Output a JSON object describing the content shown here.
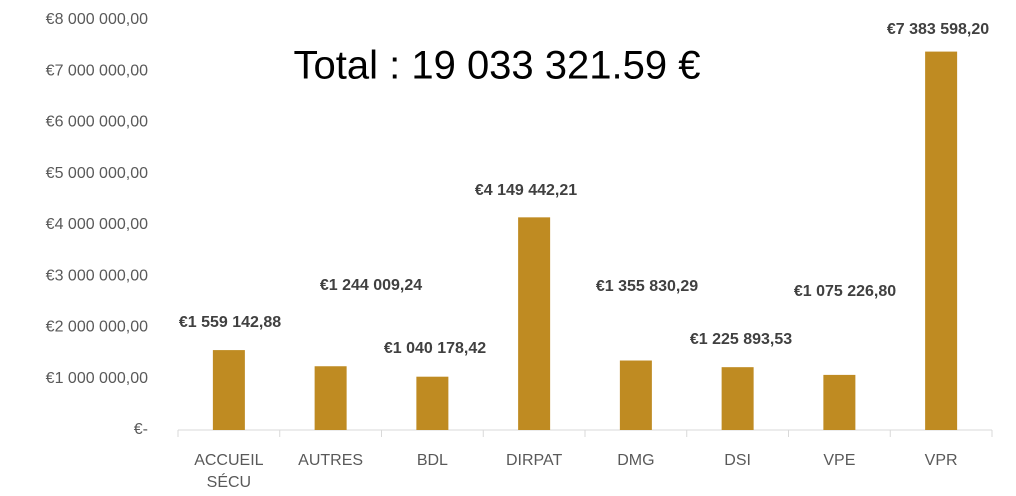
{
  "chart_data": {
    "type": "bar",
    "title": "Total : 19 033 321.59 €",
    "categories": [
      "ACCUEIL SÉCU",
      "AUTRES",
      "BDL",
      "DIRPAT",
      "DMG",
      "DSI",
      "VPE",
      "VPR"
    ],
    "values": [
      1559142.88,
      1244009.24,
      1040178.42,
      4149442.21,
      1355830.29,
      1225893.53,
      1075226.8,
      7383598.2
    ],
    "value_labels": [
      "€1 559 142,88",
      "€1 244 009,24",
      "€1 040 178,42",
      "€4 149 442,21",
      "€1 355 830,29",
      "€1 225 893,53",
      "€1 075 226,80",
      "€7 383 598,20"
    ],
    "color": "#bf8b22",
    "ylim": [
      0,
      8000000
    ],
    "yticks": [
      {
        "value": 0,
        "label": "€-"
      },
      {
        "value": 1000000,
        "label": "€1 000 000,00"
      },
      {
        "value": 2000000,
        "label": "€2 000 000,00"
      },
      {
        "value": 3000000,
        "label": "€3 000 000,00"
      },
      {
        "value": 4000000,
        "label": "€4 000 000,00"
      },
      {
        "value": 5000000,
        "label": "€5 000 000,00"
      },
      {
        "value": 6000000,
        "label": "€6 000 000,00"
      },
      {
        "value": 7000000,
        "label": "€7 000 000,00"
      },
      {
        "value": 8000000,
        "label": "€8 000 000,00"
      }
    ],
    "grid": false
  }
}
